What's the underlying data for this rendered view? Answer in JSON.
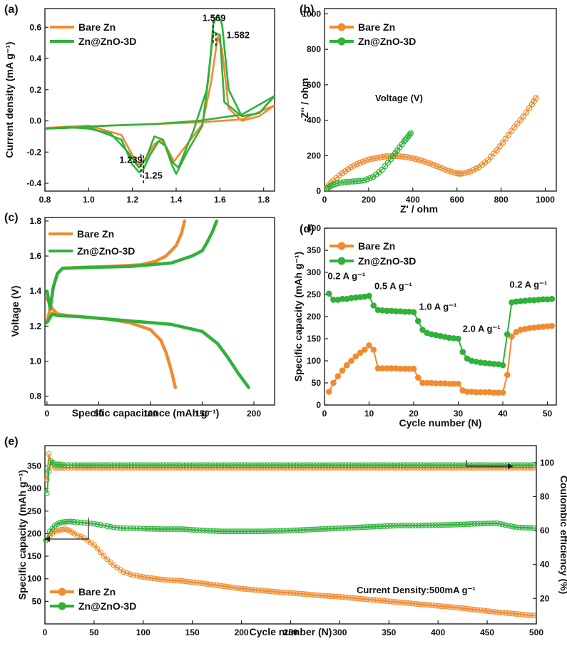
{
  "colors": {
    "bare": "#f28a2e",
    "zno": "#2fb13a",
    "bare_marker": "#f6a35a",
    "zno_marker": "#52c35a"
  },
  "legend": {
    "bare": "Bare Zn",
    "zno": "Zn@ZnO-3D"
  },
  "chart_data": [
    {
      "panel": "(a)",
      "type": "line",
      "xlabel": "",
      "ylabel": "Current density (mA g⁻¹)",
      "xlim": [
        0.8,
        1.85
      ],
      "ylim": [
        -0.45,
        0.72
      ],
      "xticks": [
        "0.8",
        "1.0",
        "1.2",
        "1.4",
        "1.6",
        "1.8"
      ],
      "yticks": [
        "-0.4",
        "-0.2",
        "0.0",
        "0.2",
        "0.4",
        "0.6"
      ],
      "annotations": [
        {
          "text": "1.569",
          "x": 1.52,
          "y": 0.64
        },
        {
          "text": "1.582",
          "x": 1.63,
          "y": 0.53
        },
        {
          "text": "1.239",
          "x": 1.14,
          "y": -0.27
        },
        {
          "text": "1.25",
          "x": 1.255,
          "y": -0.37
        }
      ],
      "series": [
        {
          "name": "Bare Zn",
          "color": "#f28a2e",
          "segments": [
            {
              "x": [
                0.8,
                1.0,
                1.15,
                1.2,
                1.23,
                1.26,
                1.3,
                1.33,
                1.36,
                1.39,
                1.45,
                1.52,
                1.56,
                1.59,
                1.61,
                1.64,
                1.7,
                1.78,
                1.85
              ],
              "y": [
                -0.045,
                -0.03,
                -0.09,
                -0.22,
                -0.28,
                -0.24,
                -0.15,
                -0.12,
                -0.18,
                -0.26,
                -0.15,
                -0.02,
                0.25,
                0.54,
                0.46,
                0.08,
                0.0,
                0.03,
                0.1
              ]
            },
            {
              "x": [
                1.85,
                1.7,
                1.5,
                1.3,
                1.1,
                0.9,
                0.8
              ],
              "y": [
                0.1,
                0.01,
                -0.01,
                -0.02,
                -0.03,
                -0.04,
                -0.045
              ]
            }
          ]
        },
        {
          "name": "Zn@ZnO-3D",
          "color": "#2fb13a",
          "segments": [
            {
              "x": [
                0.8,
                1.0,
                1.15,
                1.2,
                1.23,
                1.25,
                1.28,
                1.32,
                1.35,
                1.38,
                1.4,
                1.45,
                1.52,
                1.55,
                1.57,
                1.59,
                1.61,
                1.64,
                1.7,
                1.78,
                1.85
              ],
              "y": [
                -0.05,
                -0.04,
                -0.12,
                -0.28,
                -0.33,
                -0.31,
                -0.22,
                -0.13,
                -0.16,
                -0.28,
                -0.34,
                -0.2,
                -0.03,
                0.3,
                0.62,
                0.68,
                0.62,
                0.2,
                0.03,
                0.05,
                0.16
              ]
            },
            {
              "x": [
                1.85,
                1.78,
                1.7,
                1.62,
                1.6,
                1.57,
                1.54,
                1.48,
                1.41,
                1.38,
                1.34,
                1.3,
                1.26,
                1.23,
                1.18,
                1.1,
                1.0,
                0.9,
                0.8
              ],
              "y": [
                0.16,
                0.05,
                0.03,
                0.12,
                0.55,
                0.57,
                0.2,
                -0.06,
                -0.3,
                -0.26,
                -0.12,
                -0.1,
                -0.25,
                -0.3,
                -0.2,
                -0.08,
                -0.05,
                -0.04,
                -0.05
              ]
            },
            {
              "x": [
                1.85,
                1.7,
                1.5,
                1.3,
                1.1,
                0.9,
                0.8
              ],
              "y": [
                0.16,
                0.04,
                0.0,
                -0.02,
                -0.03,
                -0.045,
                -0.05
              ]
            }
          ]
        }
      ]
    },
    {
      "panel": "(b)",
      "type": "line",
      "xlabel": "Z' / ohm",
      "ylabel": "-Z'' / ohm",
      "xlim": [
        0,
        1050
      ],
      "ylim": [
        0,
        1030
      ],
      "xticks": [
        "0",
        "200",
        "400",
        "600",
        "800",
        "1000"
      ],
      "yticks": [
        "0",
        "200",
        "400",
        "600",
        "800",
        "1000"
      ],
      "annotation": "Voltage (V)",
      "series": [
        {
          "name": "Bare Zn",
          "color": "#f28a2e",
          "x": [
            10,
            40,
            80,
            120,
            160,
            200,
            240,
            280,
            320,
            360,
            400,
            440,
            480,
            520,
            560,
            600,
            620,
            660,
            700,
            740,
            780,
            820,
            860,
            900,
            940,
            965
          ],
          "y": [
            20,
            60,
            100,
            135,
            160,
            178,
            188,
            196,
            198,
            194,
            185,
            172,
            155,
            135,
            115,
            100,
            98,
            110,
            135,
            175,
            230,
            295,
            360,
            420,
            490,
            540
          ]
        },
        {
          "name": "Zn@ZnO-3D",
          "color": "#2fb13a",
          "x": [
            10,
            30,
            60,
            100,
            140,
            180,
            220,
            260,
            300,
            330,
            360,
            380,
            395
          ],
          "y": [
            15,
            30,
            45,
            52,
            55,
            60,
            80,
            120,
            180,
            230,
            280,
            310,
            335
          ]
        }
      ]
    },
    {
      "panel": "(c)",
      "type": "line",
      "xlabel": "Specific capacitance (mAh g⁻¹)",
      "ylabel": "Voltage (V)",
      "xlim": [
        -2,
        220
      ],
      "ylim": [
        0.75,
        1.82
      ],
      "xticks": [
        "0",
        "50",
        "100",
        "150",
        "200"
      ],
      "yticks": [
        "0.8",
        "1.0",
        "1.2",
        "1.4",
        "1.6",
        "1.8"
      ],
      "series": [
        {
          "name": "Bare Zn",
          "color": "#f28a2e",
          "segments": [
            {
              "x": [
                0,
                5,
                10,
                20,
                40,
                60,
                80,
                100,
                110,
                115,
                120,
                124
              ],
              "y": [
                1.36,
                1.3,
                1.27,
                1.26,
                1.25,
                1.24,
                1.22,
                1.18,
                1.12,
                1.05,
                0.95,
                0.85
              ]
            },
            {
              "x": [
                0,
                3,
                6,
                10,
                15,
                30,
                60,
                90,
                105,
                115,
                125,
                130,
                133
              ],
              "y": [
                1.22,
                1.3,
                1.42,
                1.5,
                1.53,
                1.535,
                1.54,
                1.55,
                1.57,
                1.6,
                1.66,
                1.73,
                1.8
              ]
            }
          ]
        },
        {
          "name": "Zn@ZnO-3D",
          "color": "#2fb13a",
          "segments": [
            {
              "x": [
                0,
                5,
                10,
                30,
                60,
                90,
                120,
                150,
                165,
                175,
                185,
                195
              ],
              "y": [
                1.22,
                1.27,
                1.26,
                1.255,
                1.24,
                1.225,
                1.21,
                1.17,
                1.1,
                1.02,
                0.93,
                0.85
              ]
            },
            {
              "x": [
                0,
                3,
                6,
                10,
                15,
                40,
                80,
                120,
                140,
                150,
                155,
                160,
                164
              ],
              "y": [
                1.4,
                1.3,
                1.42,
                1.5,
                1.53,
                1.535,
                1.54,
                1.56,
                1.6,
                1.63,
                1.68,
                1.74,
                1.8
              ]
            }
          ]
        }
      ]
    },
    {
      "panel": "(d)",
      "type": "scatter",
      "xlabel": "Cycle number (N)",
      "ylabel": "Specific capacity (mAh g⁻¹)",
      "xlim": [
        0,
        52
      ],
      "ylim": [
        0,
        400
      ],
      "xticks": [
        "0",
        "10",
        "20",
        "30",
        "40",
        "50"
      ],
      "yticks": [
        "0",
        "50",
        "100",
        "150",
        "200",
        "250",
        "300",
        "350",
        "400"
      ],
      "rate_labels": [
        {
          "text": "0.2 A g⁻¹",
          "x": 0.7,
          "y": 285
        },
        {
          "text": "0.5 A g⁻¹",
          "x": 11.2,
          "y": 262
        },
        {
          "text": "1.0 A g⁻¹",
          "x": 21.2,
          "y": 215
        },
        {
          "text": "2.0 A g⁻¹",
          "x": 31.0,
          "y": 165
        },
        {
          "text": "0.2 A g⁻¹",
          "x": 41.5,
          "y": 265
        }
      ],
      "series": [
        {
          "name": "Bare Zn",
          "color": "#f28a2e",
          "x": [
            1,
            2,
            3,
            4,
            5,
            6,
            7,
            8,
            9,
            10,
            11,
            12,
            13,
            14,
            15,
            16,
            17,
            18,
            19,
            20,
            21,
            22,
            23,
            24,
            25,
            26,
            27,
            28,
            29,
            30,
            31,
            32,
            33,
            34,
            35,
            36,
            37,
            38,
            39,
            40,
            41,
            42,
            43,
            44,
            45,
            46,
            47,
            48,
            49,
            50,
            51
          ],
          "y": [
            30,
            50,
            65,
            78,
            90,
            100,
            110,
            118,
            125,
            135,
            125,
            83,
            83,
            83,
            83,
            83,
            82,
            82,
            82,
            82,
            62,
            50,
            50,
            50,
            49,
            49,
            49,
            48,
            48,
            48,
            33,
            30,
            30,
            29,
            29,
            29,
            29,
            28,
            28,
            28,
            68,
            155,
            165,
            170,
            172,
            174,
            175,
            176,
            177,
            178,
            179
          ]
        },
        {
          "name": "Zn@ZnO-3D",
          "color": "#2fb13a",
          "x": [
            1,
            2,
            3,
            4,
            5,
            6,
            7,
            8,
            9,
            10,
            11,
            12,
            13,
            14,
            15,
            16,
            17,
            18,
            19,
            20,
            21,
            22,
            23,
            24,
            25,
            26,
            27,
            28,
            29,
            30,
            31,
            32,
            33,
            34,
            35,
            36,
            37,
            38,
            39,
            40,
            41,
            42,
            43,
            44,
            45,
            46,
            47,
            48,
            49,
            50,
            51
          ],
          "y": [
            252,
            238,
            238,
            240,
            240,
            242,
            243,
            244,
            245,
            247,
            225,
            215,
            214,
            213,
            213,
            212,
            212,
            211,
            211,
            210,
            190,
            170,
            163,
            160,
            158,
            156,
            154,
            152,
            151,
            150,
            120,
            105,
            100,
            98,
            96,
            95,
            94,
            93,
            92,
            90,
            160,
            232,
            234,
            235,
            236,
            237,
            237,
            238,
            239,
            239,
            240
          ]
        }
      ]
    },
    {
      "panel": "(e)",
      "type": "scatter",
      "xlabel": "Cycle number (N)",
      "ylabel": "Specific capacity (mAh g⁻¹)",
      "ylabel_right": "Coulombic efficiency (%)",
      "xlim": [
        0,
        500
      ],
      "ylim": [
        0,
        395
      ],
      "ylim_right": [
        5,
        110
      ],
      "xticks": [
        "0",
        "50",
        "100",
        "150",
        "200",
        "250",
        "300",
        "350",
        "400",
        "450",
        "500"
      ],
      "yticks": [
        "50",
        "100",
        "150",
        "200",
        "250",
        "300",
        "350"
      ],
      "yticks_right": [
        "20",
        "40",
        "60",
        "80",
        "100"
      ],
      "annotation": "Current Density:500mA g⁻¹",
      "capacity_series": [
        {
          "name": "Bare Zn",
          "color": "#f28a2e",
          "x": [
            1,
            5,
            10,
            15,
            20,
            25,
            30,
            40,
            50,
            60,
            70,
            80,
            90,
            100,
            120,
            140,
            160,
            180,
            200,
            220,
            240,
            260,
            280,
            300,
            320,
            340,
            360,
            380,
            400,
            420,
            440,
            460,
            480,
            500
          ],
          "y": [
            185,
            195,
            205,
            208,
            210,
            207,
            200,
            190,
            175,
            150,
            130,
            115,
            108,
            104,
            98,
            95,
            90,
            84,
            78,
            74,
            70,
            67,
            63,
            60,
            56,
            52,
            48,
            44,
            40,
            36,
            31,
            26,
            22,
            18
          ]
        },
        {
          "name": "Zn@ZnO-3D",
          "color": "#2fb13a",
          "x": [
            1,
            5,
            10,
            15,
            20,
            25,
            30,
            40,
            50,
            60,
            70,
            80,
            90,
            100,
            120,
            140,
            160,
            180,
            200,
            220,
            240,
            260,
            280,
            300,
            320,
            340,
            360,
            380,
            400,
            420,
            440,
            460,
            480,
            500
          ],
          "y": [
            185,
            205,
            218,
            224,
            226,
            227,
            226,
            224,
            222,
            218,
            214,
            212,
            212,
            211,
            210,
            210,
            207,
            205,
            205,
            205,
            206,
            208,
            210,
            212,
            214,
            216,
            218,
            218,
            219,
            220,
            222,
            223,
            214,
            212
          ]
        }
      ],
      "efficiency_series": [
        {
          "name": "Bare Zn",
          "color": "#f28a2e",
          "x": [
            2,
            4,
            6,
            8,
            10,
            15,
            20,
            30,
            50,
            100,
            150,
            200,
            250,
            300,
            350,
            400,
            450,
            500
          ],
          "y": [
            90,
            105,
            100,
            98,
            97,
            97,
            97,
            97,
            97,
            97,
            97,
            97,
            97,
            97,
            97,
            97,
            97,
            97
          ]
        },
        {
          "name": "Zn@ZnO-3D",
          "color": "#2fb13a",
          "x": [
            2,
            4,
            6,
            8,
            10,
            15,
            20,
            30,
            50,
            100,
            150,
            200,
            250,
            300,
            350,
            400,
            450,
            500
          ],
          "y": [
            82,
            95,
            101,
            100,
            99,
            99,
            98.5,
            98.5,
            98.5,
            98.5,
            98.5,
            98.5,
            98.5,
            98.5,
            98.5,
            98.5,
            98.5,
            98.5
          ]
        }
      ]
    }
  ]
}
